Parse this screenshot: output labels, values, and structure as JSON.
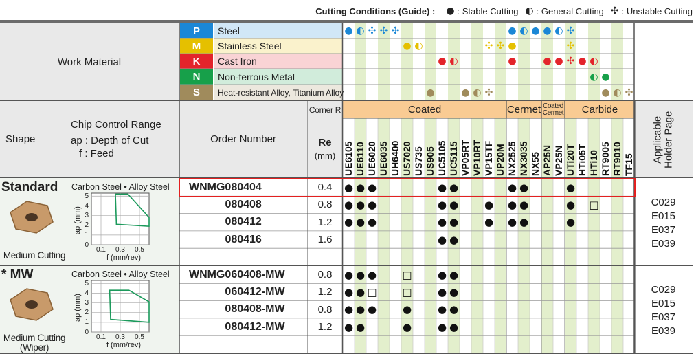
{
  "legend": {
    "title": "Cutting Conditions (Guide) :",
    "items": [
      {
        "symbol": "●",
        "label": ": Stable Cutting"
      },
      {
        "symbol": "◐",
        "label": ": General Cutting"
      },
      {
        "symbol": "✣",
        "label": ": Unstable Cutting"
      }
    ]
  },
  "work_material": {
    "label": "Work Material",
    "materials": [
      {
        "code": "P",
        "name": "Steel",
        "color": "#1b87d6",
        "marks": [
          "●",
          "◐",
          "✣",
          "✣",
          "✣",
          null,
          null,
          null,
          null,
          null,
          null,
          null,
          null,
          null,
          "●",
          "◐",
          "●",
          "●",
          "◐",
          "✣",
          null,
          null,
          null,
          null,
          null
        ]
      },
      {
        "code": "M",
        "name": "Stainless Steel",
        "color": "#e5c000",
        "marks": [
          null,
          null,
          null,
          null,
          null,
          "●",
          "◐",
          null,
          null,
          null,
          null,
          null,
          "✣",
          "✣",
          "●",
          null,
          null,
          null,
          null,
          "✣",
          null,
          null,
          null,
          null,
          null
        ]
      },
      {
        "code": "K",
        "name": "Cast Iron",
        "color": "#e3242b",
        "marks": [
          null,
          null,
          null,
          null,
          null,
          null,
          null,
          null,
          "●",
          "◐",
          null,
          null,
          null,
          null,
          "●",
          null,
          null,
          "●",
          "●",
          "✣",
          "●",
          "◐",
          null,
          null,
          null
        ]
      },
      {
        "code": "N",
        "name": "Non-ferrous Metal",
        "color": "#17a04a",
        "marks": [
          null,
          null,
          null,
          null,
          null,
          null,
          null,
          null,
          null,
          null,
          null,
          null,
          null,
          null,
          null,
          null,
          null,
          null,
          null,
          null,
          null,
          "◐",
          "●",
          null,
          null
        ]
      },
      {
        "code": "S",
        "name": "Heat-resistant Alloy, Titanium Alloy",
        "color": "#a08b5c",
        "marks": [
          null,
          null,
          null,
          null,
          null,
          null,
          null,
          "●",
          null,
          null,
          "●",
          "◐",
          "✣",
          null,
          null,
          null,
          null,
          null,
          null,
          null,
          null,
          null,
          "●",
          "◐",
          "✣"
        ]
      }
    ]
  },
  "header": {
    "shape": "Shape",
    "chip_control": "Chip Control Range",
    "depth": "ap : Depth of Cut",
    "feed": "f : Feed",
    "order_number": "Order Number",
    "corner_r": "Corner R",
    "re": "Re",
    "re_unit": "(mm)",
    "holder_page": "Applicable Holder Page"
  },
  "grade_groups": [
    {
      "name": "Coated",
      "grades": [
        "UE6105",
        "UE6110",
        "UE6020",
        "UE6035",
        "UH6400",
        "US7020",
        "US735",
        "US905",
        "UC5105",
        "UC5115",
        "VP05RT",
        "VP10RT",
        "VP15TF",
        "UP20M"
      ]
    },
    {
      "name": "Cermet",
      "grades": [
        "NX2525",
        "NX3035",
        "NX55"
      ]
    },
    {
      "name": "Coated Cermet",
      "grades": [
        "AP25N",
        "VP25N"
      ]
    },
    {
      "name": "Carbide",
      "grades": [
        "UTi20T",
        "HTi05T",
        "HTi10",
        "RT9005",
        "RT9010",
        "TF15"
      ]
    }
  ],
  "products": [
    {
      "title": "Standard",
      "caption": "Medium Cutting",
      "chart": {
        "label": "Carbon Steel • Alloy Steel",
        "ylabel": "ap (mm)",
        "xlabel": "f (mm/rev)",
        "xlim": [
          0,
          0.6
        ],
        "ylim": [
          0,
          5.3
        ],
        "xticks": [
          0.1,
          0.3,
          0.5
        ],
        "yticks": [
          0,
          1,
          2,
          3,
          4,
          5
        ],
        "region": {
          "f": [
            0.25,
            0.38,
            0.6,
            0.6,
            0.26
          ],
          "ap": [
            5.2,
            5.2,
            2.8,
            1.9,
            2.1
          ]
        }
      },
      "holder_pages": [
        "C029",
        "E015",
        "E037",
        "E039"
      ],
      "rows": [
        {
          "order": "WNMG080404",
          "re": 0.4,
          "marks": [
            "●",
            "●",
            "●",
            null,
            null,
            null,
            null,
            null,
            "●",
            "●",
            null,
            null,
            null,
            null,
            "●",
            "●",
            null,
            null,
            null,
            "●",
            null,
            null,
            null,
            null,
            null
          ]
        },
        {
          "order": "080408",
          "re": 0.8,
          "marks": [
            "●",
            "●",
            "●",
            null,
            null,
            null,
            null,
            null,
            "●",
            "●",
            null,
            null,
            "●",
            null,
            "●",
            "●",
            null,
            null,
            null,
            "●",
            null,
            "□",
            null,
            null,
            null
          ]
        },
        {
          "order": "080412",
          "re": 1.2,
          "marks": [
            "●",
            "●",
            "●",
            null,
            null,
            null,
            null,
            null,
            "●",
            "●",
            null,
            null,
            "●",
            null,
            "●",
            "●",
            null,
            null,
            null,
            "●",
            null,
            null,
            null,
            null,
            null
          ]
        },
        {
          "order": "080416",
          "re": 1.6,
          "marks": [
            null,
            null,
            null,
            null,
            null,
            null,
            null,
            null,
            "●",
            "●",
            null,
            null,
            null,
            null,
            null,
            null,
            null,
            null,
            null,
            null,
            null,
            null,
            null,
            null,
            null
          ]
        }
      ]
    },
    {
      "title": "* MW",
      "caption": "Medium Cutting (Wiper)",
      "chart": {
        "label": "Carbon Steel • Alloy Steel",
        "ylabel": "ap (mm)",
        "xlabel": "f (mm/rev)",
        "xlim": [
          0,
          0.6
        ],
        "ylim": [
          0,
          5.3
        ],
        "xticks": [
          0.1,
          0.3,
          0.5
        ],
        "yticks": [
          0,
          1,
          2,
          3,
          4,
          5
        ],
        "region": {
          "f": [
            0.19,
            0.39,
            0.6,
            0.6,
            0.2
          ],
          "ap": [
            4.3,
            4.3,
            3.1,
            1.0,
            1.3
          ]
        }
      },
      "holder_pages": [
        "C029",
        "E015",
        "E037",
        "E039"
      ],
      "rows": [
        {
          "order": "WNMG060408-MW",
          "re": 0.8,
          "marks": [
            "●",
            "●",
            "●",
            null,
            null,
            "□",
            null,
            null,
            "●",
            "●",
            null,
            null,
            null,
            null,
            null,
            null,
            null,
            null,
            null,
            null,
            null,
            null,
            null,
            null,
            null
          ]
        },
        {
          "order": "060412-MW",
          "re": 1.2,
          "marks": [
            "●",
            "●",
            "□",
            null,
            null,
            "□",
            null,
            null,
            "●",
            "●",
            null,
            null,
            null,
            null,
            null,
            null,
            null,
            null,
            null,
            null,
            null,
            null,
            null,
            null,
            null
          ]
        },
        {
          "order": "080408-MW",
          "re": 0.8,
          "marks": [
            "●",
            "●",
            "●",
            null,
            null,
            "●",
            null,
            null,
            "●",
            "●",
            null,
            null,
            null,
            null,
            null,
            null,
            null,
            null,
            null,
            null,
            null,
            null,
            null,
            null,
            null
          ]
        },
        {
          "order": "080412-MW",
          "re": 1.2,
          "marks": [
            "●",
            "●",
            null,
            null,
            null,
            "●",
            null,
            null,
            "●",
            "●",
            null,
            null,
            null,
            null,
            null,
            null,
            null,
            null,
            null,
            null,
            null,
            null,
            null,
            null,
            null
          ]
        }
      ]
    }
  ]
}
